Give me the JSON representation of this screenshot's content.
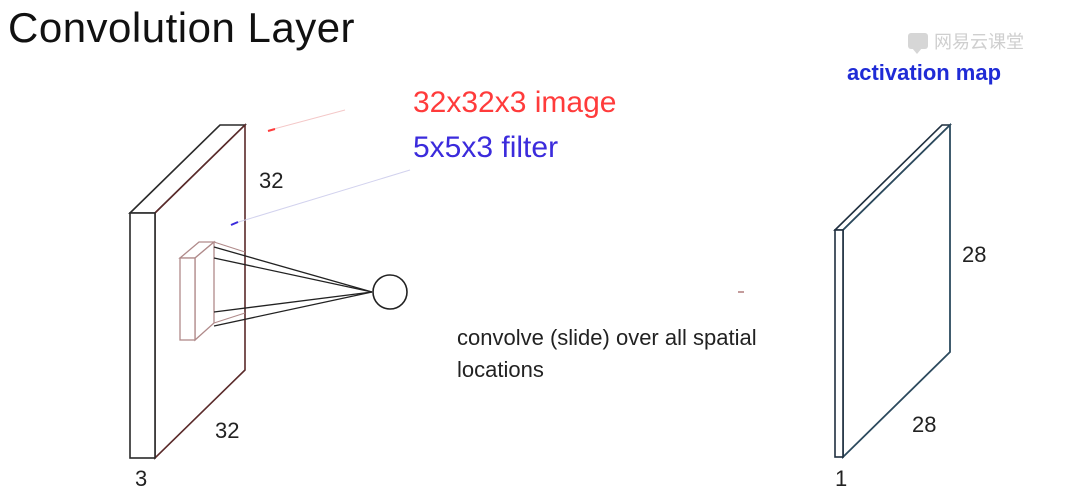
{
  "title": "Convolution Layer",
  "legend": {
    "image_label": "32x32x3 image",
    "filter_label": "5x5x3 filter",
    "image_color": "#ff3b3b",
    "filter_color": "#3b2bdc"
  },
  "input_volume": {
    "height_label": "32",
    "width_label": "32",
    "depth_label": "3"
  },
  "activation_map": {
    "title": "activation map",
    "title_color": "#1f2bd6",
    "height_label": "28",
    "width_label": "28",
    "depth_label": "1"
  },
  "caption": "convolve (slide) over all spatial locations",
  "watermark": {
    "text": "网易云课堂",
    "icon": "chat-bubble-icon"
  }
}
